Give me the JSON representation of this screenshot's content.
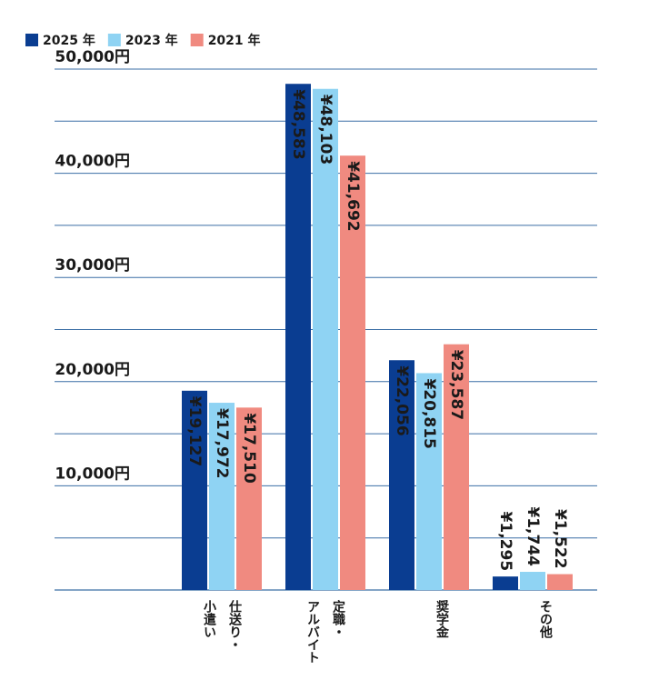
{
  "chart_data": {
    "type": "bar",
    "categories": [
      [
        "仕送り・",
        "小遣い"
      ],
      [
        "定職・",
        "アルバイト"
      ],
      [
        "奨学金"
      ],
      [
        "その他"
      ]
    ],
    "series": [
      {
        "name": "2025 年",
        "color": "#0a3d91",
        "values": [
          19127,
          48583,
          22056,
          1295
        ],
        "value_labels": [
          "¥19,127",
          "¥48,583",
          "¥22,056",
          "¥1,295"
        ]
      },
      {
        "name": "2023 年",
        "color": "#8fd3f3",
        "values": [
          17972,
          48103,
          20815,
          1744
        ],
        "value_labels": [
          "¥17,972",
          "¥48,103",
          "¥20,815",
          "¥1,744"
        ]
      },
      {
        "name": "2021 年",
        "color": "#f08a80",
        "values": [
          17510,
          41692,
          23587,
          1522
        ],
        "value_labels": [
          "¥17,510",
          "¥41,692",
          "¥23,587",
          "¥1,522"
        ]
      }
    ],
    "ylim": [
      0,
      50000
    ],
    "yticks": [
      {
        "value": 10000,
        "label": "10,000円"
      },
      {
        "value": 20000,
        "label": "20,000円"
      },
      {
        "value": 30000,
        "label": "30,000円"
      },
      {
        "value": 40000,
        "label": "40,000円"
      },
      {
        "value": 50000,
        "label": "50,000円"
      }
    ],
    "minor_yticks": [
      5000,
      15000,
      25000,
      35000,
      45000
    ],
    "grid": true,
    "grid_color": "#3a6ea5",
    "legend": "top-left"
  }
}
